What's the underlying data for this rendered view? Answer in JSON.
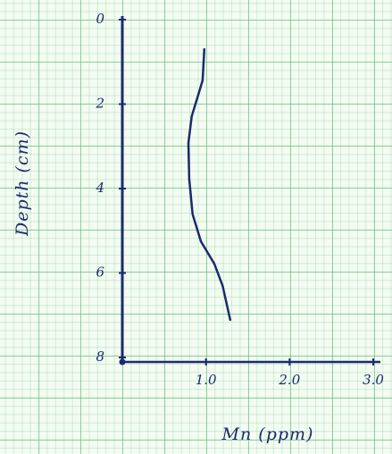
{
  "chart_data": {
    "type": "line",
    "x_label": "Mn (ppm)",
    "y_label": "Depth (cm)",
    "y": [
      0.7,
      1.44,
      2.29,
      2.92,
      3.77,
      4.61,
      5.25,
      5.78,
      6.31,
      7.11
    ],
    "values": [
      0.98,
      0.96,
      0.83,
      0.79,
      0.8,
      0.84,
      0.94,
      1.1,
      1.2,
      1.29
    ],
    "color": "#1a2a6e",
    "xlim": [
      0,
      3
    ],
    "xticks": [
      {
        "value": 1,
        "label": "1.0"
      },
      {
        "value": 2,
        "label": "2.0"
      },
      {
        "value": 3,
        "label": "3.0"
      }
    ],
    "ylim": [
      0,
      8
    ],
    "y_inverted": true,
    "yticks": [
      0,
      2,
      4,
      6,
      8
    ]
  }
}
